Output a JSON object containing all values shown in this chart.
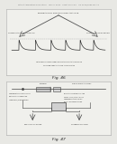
{
  "bg_color": "#e8e8e4",
  "header_text": "Patent Application Publication    May 3, 2012   Sheet 46 of 53    US 2012/0085791 A1",
  "fig46_label": "Fig. 46",
  "fig47_label": "Fig. 47",
  "panel_bg": "#f0f0ec",
  "panel_border": "#aaaaaa",
  "text_color": "#333333",
  "line_color": "#555555"
}
